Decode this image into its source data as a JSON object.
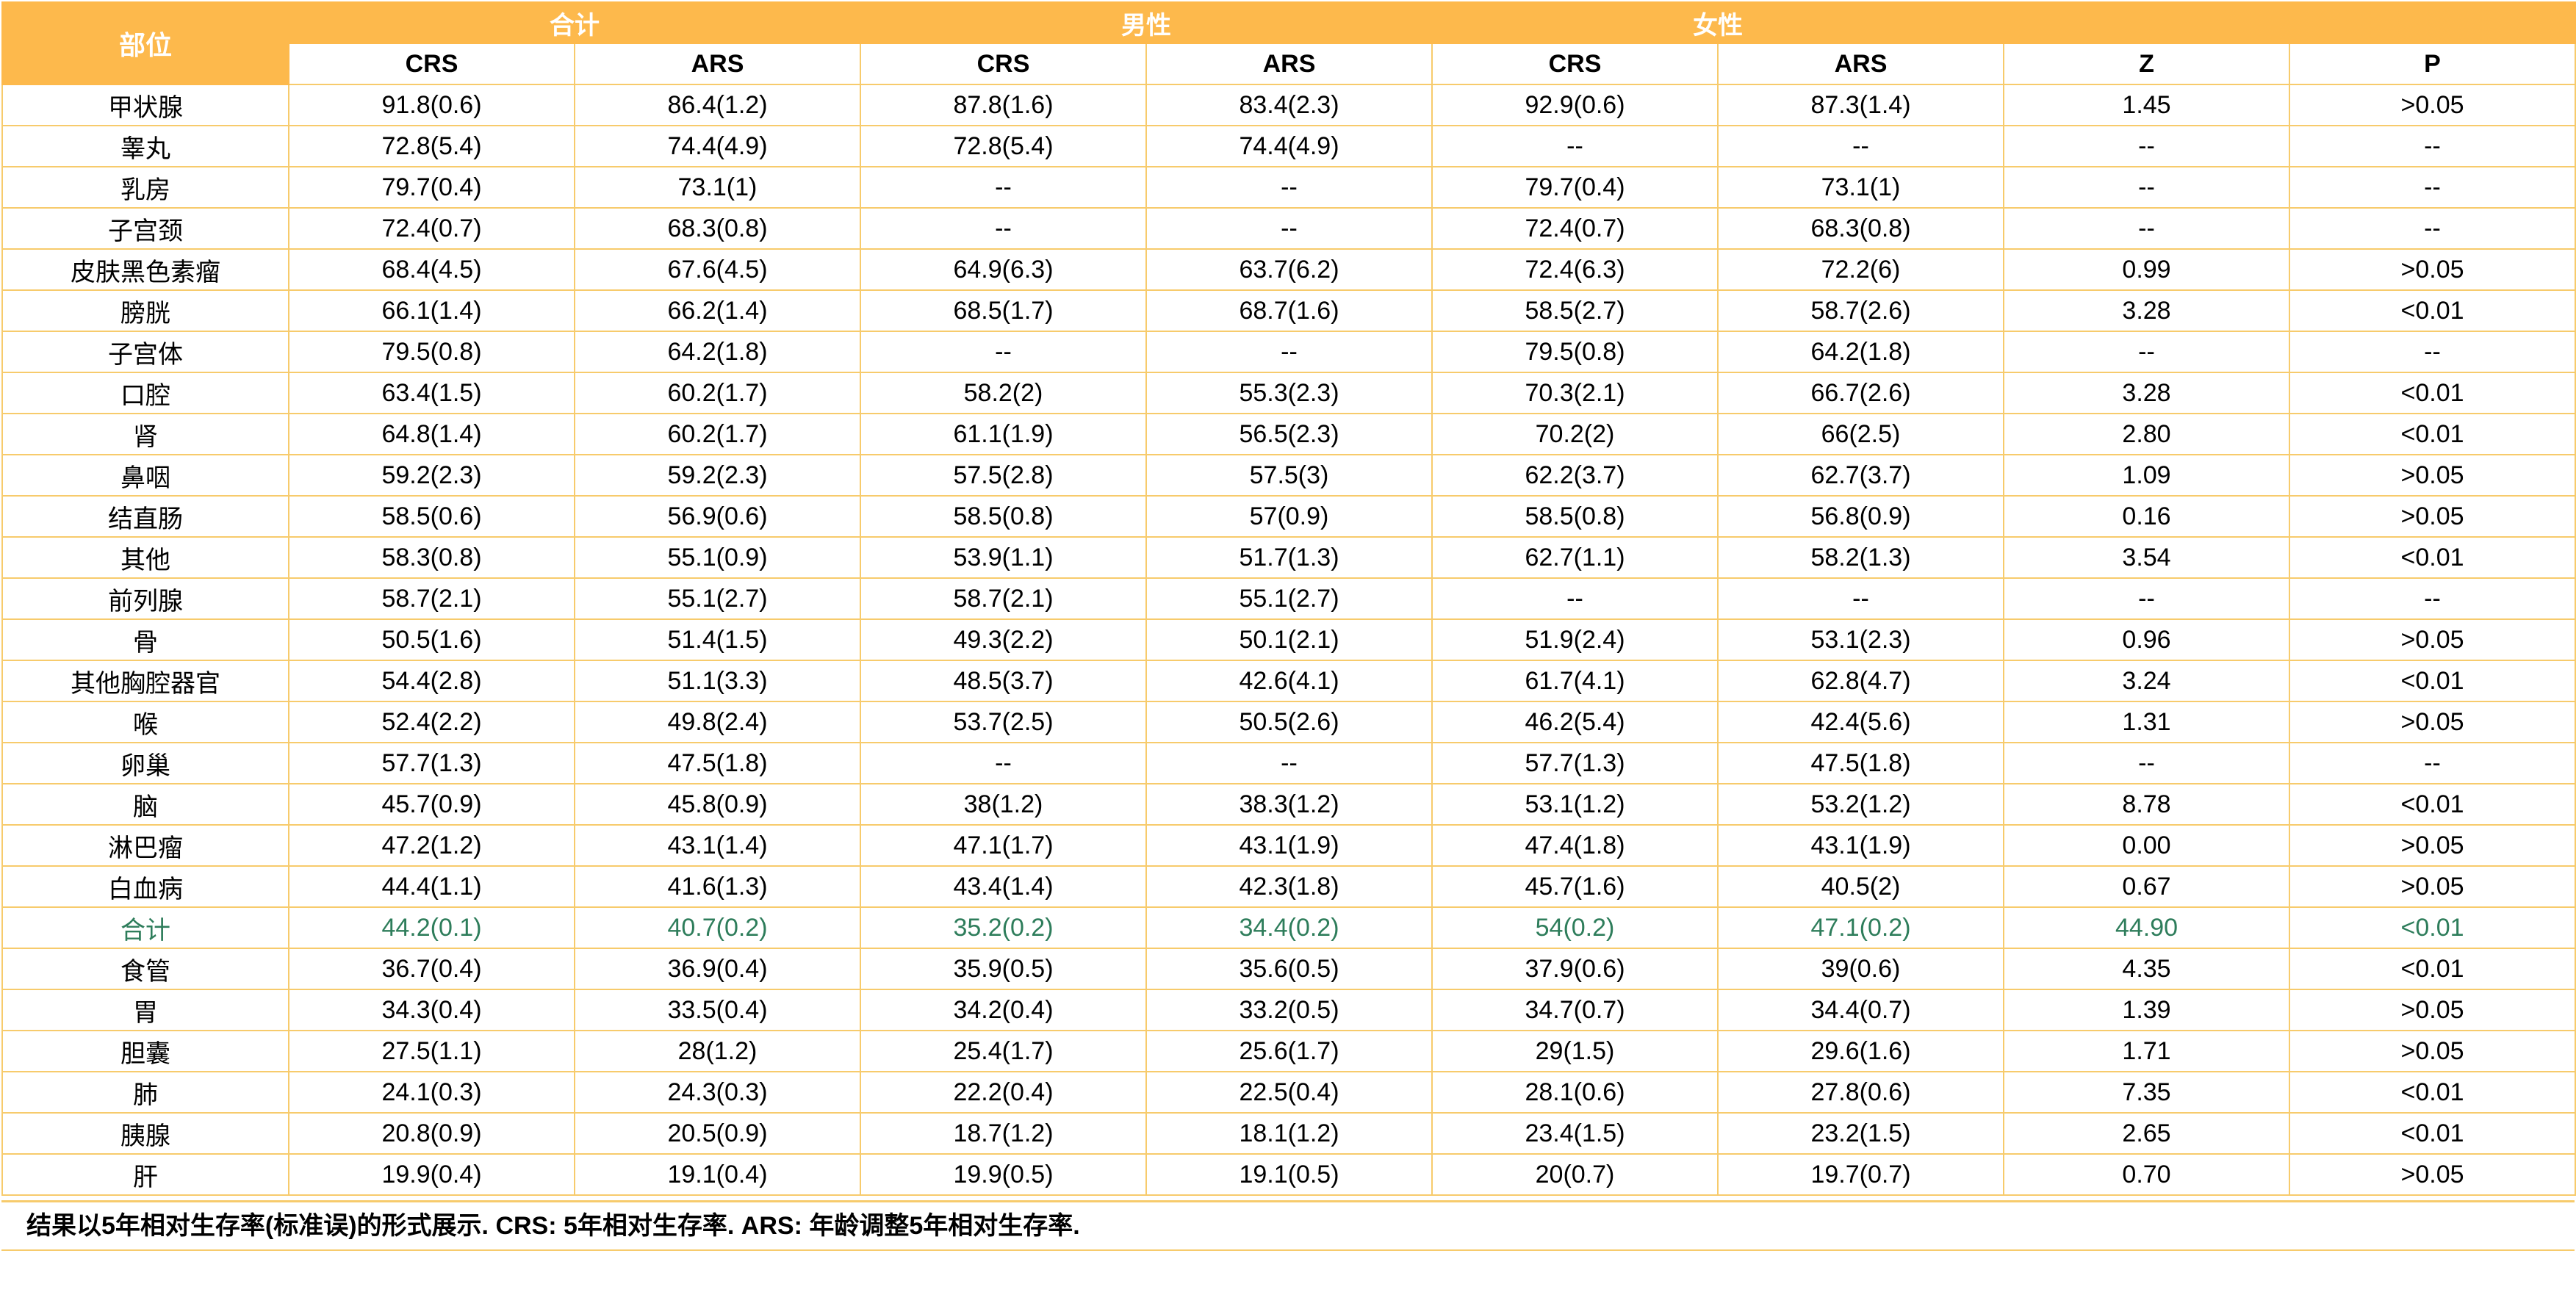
{
  "header": {
    "site_label": "部位",
    "groups": [
      "合计",
      "男性",
      "女性"
    ],
    "columns": [
      "CRS",
      "ARS",
      "CRS",
      "ARS",
      "CRS",
      "ARS",
      "Z",
      "P"
    ]
  },
  "rows": [
    [
      "甲状腺",
      "91.8(0.6)",
      "86.4(1.2)",
      "87.8(1.6)",
      "83.4(2.3)",
      "92.9(0.6)",
      "87.3(1.4)",
      "1.45",
      ">0.05"
    ],
    [
      "睾丸",
      "72.8(5.4)",
      "74.4(4.9)",
      "72.8(5.4)",
      "74.4(4.9)",
      "--",
      "--",
      "--",
      "--"
    ],
    [
      "乳房",
      "79.7(0.4)",
      "73.1(1)",
      "--",
      "--",
      "79.7(0.4)",
      "73.1(1)",
      "--",
      "--"
    ],
    [
      "子宫颈",
      "72.4(0.7)",
      "68.3(0.8)",
      "--",
      "--",
      "72.4(0.7)",
      "68.3(0.8)",
      "--",
      "--"
    ],
    [
      "皮肤黑色素瘤",
      "68.4(4.5)",
      "67.6(4.5)",
      "64.9(6.3)",
      "63.7(6.2)",
      "72.4(6.3)",
      "72.2(6)",
      "0.99",
      ">0.05"
    ],
    [
      "膀胱",
      "66.1(1.4)",
      "66.2(1.4)",
      "68.5(1.7)",
      "68.7(1.6)",
      "58.5(2.7)",
      "58.7(2.6)",
      "3.28",
      "<0.01"
    ],
    [
      "子宫体",
      "79.5(0.8)",
      "64.2(1.8)",
      "--",
      "--",
      "79.5(0.8)",
      "64.2(1.8)",
      "--",
      "--"
    ],
    [
      "口腔",
      "63.4(1.5)",
      "60.2(1.7)",
      "58.2(2)",
      "55.3(2.3)",
      "70.3(2.1)",
      "66.7(2.6)",
      "3.28",
      "<0.01"
    ],
    [
      "肾",
      "64.8(1.4)",
      "60.2(1.7)",
      "61.1(1.9)",
      "56.5(2.3)",
      "70.2(2)",
      "66(2.5)",
      "2.80",
      "<0.01"
    ],
    [
      "鼻咽",
      "59.2(2.3)",
      "59.2(2.3)",
      "57.5(2.8)",
      "57.5(3)",
      "62.2(3.7)",
      "62.7(3.7)",
      "1.09",
      ">0.05"
    ],
    [
      "结直肠",
      "58.5(0.6)",
      "56.9(0.6)",
      "58.5(0.8)",
      "57(0.9)",
      "58.5(0.8)",
      "56.8(0.9)",
      "0.16",
      ">0.05"
    ],
    [
      "其他",
      "58.3(0.8)",
      "55.1(0.9)",
      "53.9(1.1)",
      "51.7(1.3)",
      "62.7(1.1)",
      "58.2(1.3)",
      "3.54",
      "<0.01"
    ],
    [
      "前列腺",
      "58.7(2.1)",
      "55.1(2.7)",
      "58.7(2.1)",
      "55.1(2.7)",
      "--",
      "--",
      "--",
      "--"
    ],
    [
      "骨",
      "50.5(1.6)",
      "51.4(1.5)",
      "49.3(2.2)",
      "50.1(2.1)",
      "51.9(2.4)",
      "53.1(2.3)",
      "0.96",
      ">0.05"
    ],
    [
      "其他胸腔器官",
      "54.4(2.8)",
      "51.1(3.3)",
      "48.5(3.7)",
      "42.6(4.1)",
      "61.7(4.1)",
      "62.8(4.7)",
      "3.24",
      "<0.01"
    ],
    [
      "喉",
      "52.4(2.2)",
      "49.8(2.4)",
      "53.7(2.5)",
      "50.5(2.6)",
      "46.2(5.4)",
      "42.4(5.6)",
      "1.31",
      ">0.05"
    ],
    [
      "卵巢",
      "57.7(1.3)",
      "47.5(1.8)",
      "--",
      "--",
      "57.7(1.3)",
      "47.5(1.8)",
      "--",
      "--"
    ],
    [
      "脑",
      "45.7(0.9)",
      "45.8(0.9)",
      "38(1.2)",
      "38.3(1.2)",
      "53.1(1.2)",
      "53.2(1.2)",
      "8.78",
      "<0.01"
    ],
    [
      "淋巴瘤",
      "47.2(1.2)",
      "43.1(1.4)",
      "47.1(1.7)",
      "43.1(1.9)",
      "47.4(1.8)",
      "43.1(1.9)",
      "0.00",
      ">0.05"
    ],
    [
      "白血病",
      "44.4(1.1)",
      "41.6(1.3)",
      "43.4(1.4)",
      "42.3(1.8)",
      "45.7(1.6)",
      "40.5(2)",
      "0.67",
      ">0.05"
    ],
    [
      "合计",
      "44.2(0.1)",
      "40.7(0.2)",
      "35.2(0.2)",
      "34.4(0.2)",
      "54(0.2)",
      "47.1(0.2)",
      "44.90",
      "<0.01"
    ],
    [
      "食管",
      "36.7(0.4)",
      "36.9(0.4)",
      "35.9(0.5)",
      "35.6(0.5)",
      "37.9(0.6)",
      "39(0.6)",
      "4.35",
      "<0.01"
    ],
    [
      "胃",
      "34.3(0.4)",
      "33.5(0.4)",
      "34.2(0.4)",
      "33.2(0.5)",
      "34.7(0.7)",
      "34.4(0.7)",
      "1.39",
      ">0.05"
    ],
    [
      "胆囊",
      "27.5(1.1)",
      "28(1.2)",
      "25.4(1.7)",
      "25.6(1.7)",
      "29(1.5)",
      "29.6(1.6)",
      "1.71",
      ">0.05"
    ],
    [
      "肺",
      "24.1(0.3)",
      "24.3(0.3)",
      "22.2(0.4)",
      "22.5(0.4)",
      "28.1(0.6)",
      "27.8(0.6)",
      "7.35",
      "<0.01"
    ],
    [
      "胰腺",
      "20.8(0.9)",
      "20.5(0.9)",
      "18.7(1.2)",
      "18.1(1.2)",
      "23.4(1.5)",
      "23.2(1.5)",
      "2.65",
      "<0.01"
    ],
    [
      "肝",
      "19.9(0.4)",
      "19.1(0.4)",
      "19.9(0.5)",
      "19.1(0.5)",
      "20(0.7)",
      "19.7(0.7)",
      "0.70",
      ">0.05"
    ]
  ],
  "highlight_row_label": "合计",
  "footnote": "结果以5年相对生存率(标准误)的形式展示. CRS: 5年相对生存率. ARS: 年龄调整5年相对生存率.",
  "colors": {
    "header_bg": "#FDB94C",
    "header_text": "#ffffff",
    "grid_line": "#F7CB6C",
    "highlight_text": "#2E7D5B"
  }
}
